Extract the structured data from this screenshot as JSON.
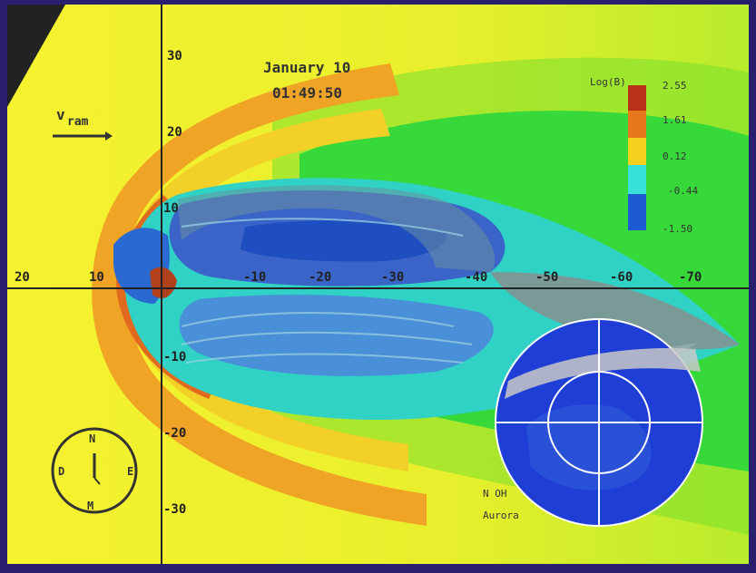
{
  "title": {
    "date": "January 10",
    "time": "01:49:50"
  },
  "flow_label": "v_ram",
  "flow_label_main": "v",
  "flow_label_sub": "ram",
  "x_axis_ticks": [
    "20",
    "10",
    "-10",
    "-20",
    "-30",
    "-40",
    "-50",
    "-60",
    "-70"
  ],
  "y_axis_ticks": [
    "30",
    "20",
    "10",
    "-10",
    "-20",
    "-30"
  ],
  "colorbar": {
    "title": "Log(B)",
    "labels": [
      "2.55",
      "1.61",
      "0.12",
      "-0.44",
      "-1.50"
    ],
    "colors": [
      "#b8321a",
      "#e8781e",
      "#f6d21e",
      "#37e0d8",
      "#1e5ad2"
    ]
  },
  "clock": {
    "labels": [
      "N",
      "E",
      "D",
      "M"
    ]
  },
  "aurora": {
    "label_line1": "N OH",
    "label_line2": "Aurora"
  },
  "colors": {
    "background_frame": "#2a1f6e",
    "solar_wind": "#f3ef2a",
    "bow_shock": "#f0a426",
    "magnetosheath_green": "#36d83a",
    "magnetosphere_cyan": "#2fd2c4",
    "lobe_blue": "#3a64c8",
    "aurora_disk": "#1e3ed6"
  }
}
